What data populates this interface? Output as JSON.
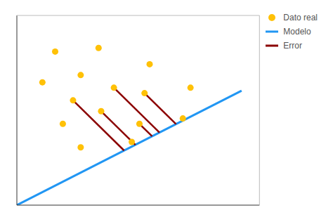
{
  "chart_data": {
    "type": "scatter",
    "xlim": [
      0,
      9.5
    ],
    "ylim": [
      0,
      10.5
    ],
    "tick_labels": false,
    "grid": false,
    "legend": "upper right",
    "series": [
      {
        "name": "Dato real",
        "type": "scatter",
        "color": "#FFC107",
        "marker": "circle",
        "x": [
          1.5,
          3.2,
          5.2,
          1.0,
          2.5,
          2.2,
          3.8,
          5.0,
          6.8,
          1.8,
          3.3,
          4.8,
          2.5,
          4.5,
          6.5
        ],
        "values": [
          8.5,
          8.7,
          7.8,
          6.8,
          7.2,
          5.8,
          6.5,
          6.2,
          6.5,
          4.5,
          5.2,
          4.5,
          3.2,
          3.5,
          4.8
        ]
      },
      {
        "name": "Modelo",
        "type": "line",
        "color": "#2196F3",
        "x": [
          0.0,
          8.8
        ],
        "values": [
          0.0,
          6.336
        ]
      },
      {
        "name": "Error",
        "type": "line",
        "color": "#8B0000",
        "x": [
          2.2,
          4.1992,
          null,
          3.3,
          4.6391,
          null,
          3.8,
          5.5848,
          null,
          4.8,
          5.295,
          null,
          5.0,
          6.2329
        ],
        "values": [
          5.8,
          3.0234,
          null,
          5.2,
          3.3401,
          null,
          6.5,
          4.0211,
          null,
          4.5,
          3.8124,
          null,
          6.2,
          4.4877
        ]
      }
    ]
  }
}
